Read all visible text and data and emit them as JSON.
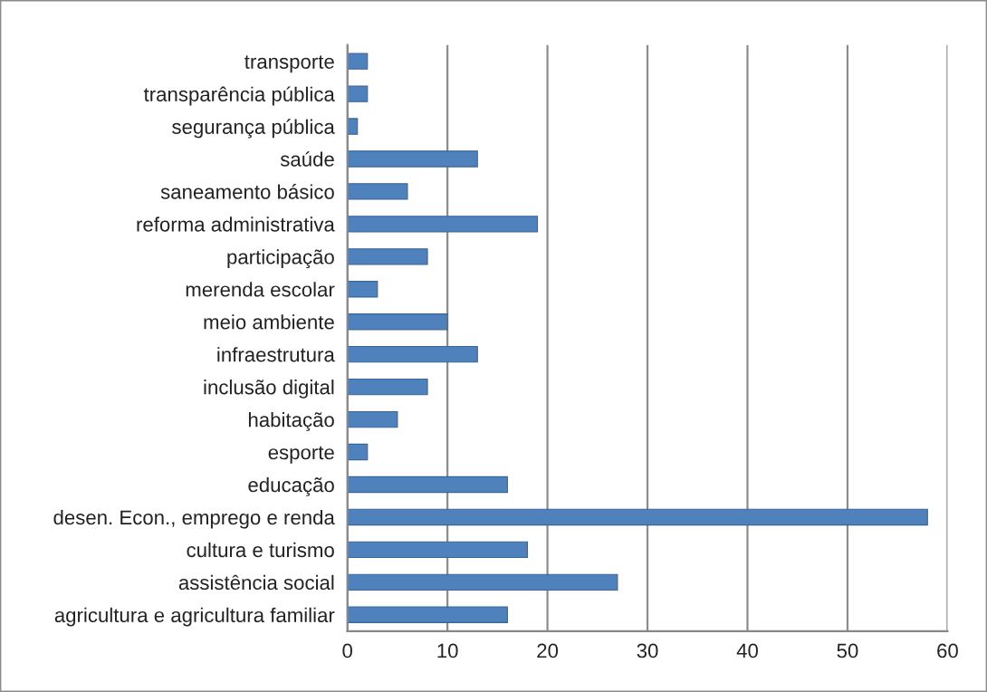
{
  "chart_data": {
    "type": "bar",
    "orientation": "horizontal",
    "categories": [
      "transporte",
      "transparência pública",
      "segurança pública",
      "saúde",
      "saneamento básico",
      "reforma administrativa",
      "participação",
      "merenda escolar",
      "meio ambiente",
      "infraestrutura",
      "inclusão digital",
      "habitação",
      "esporte",
      "educação",
      "desen. Econ., emprego e renda",
      "cultura e turismo",
      "assistência social",
      "agricultura e agricultura familiar"
    ],
    "values": [
      2,
      2,
      1,
      13,
      6,
      19,
      8,
      3,
      10,
      13,
      8,
      5,
      2,
      16,
      58,
      18,
      27,
      16
    ],
    "color": "#4f81bd",
    "xlim": [
      0,
      60
    ],
    "xticks": [
      0,
      10,
      20,
      30,
      40,
      50,
      60
    ],
    "grid": "x"
  }
}
